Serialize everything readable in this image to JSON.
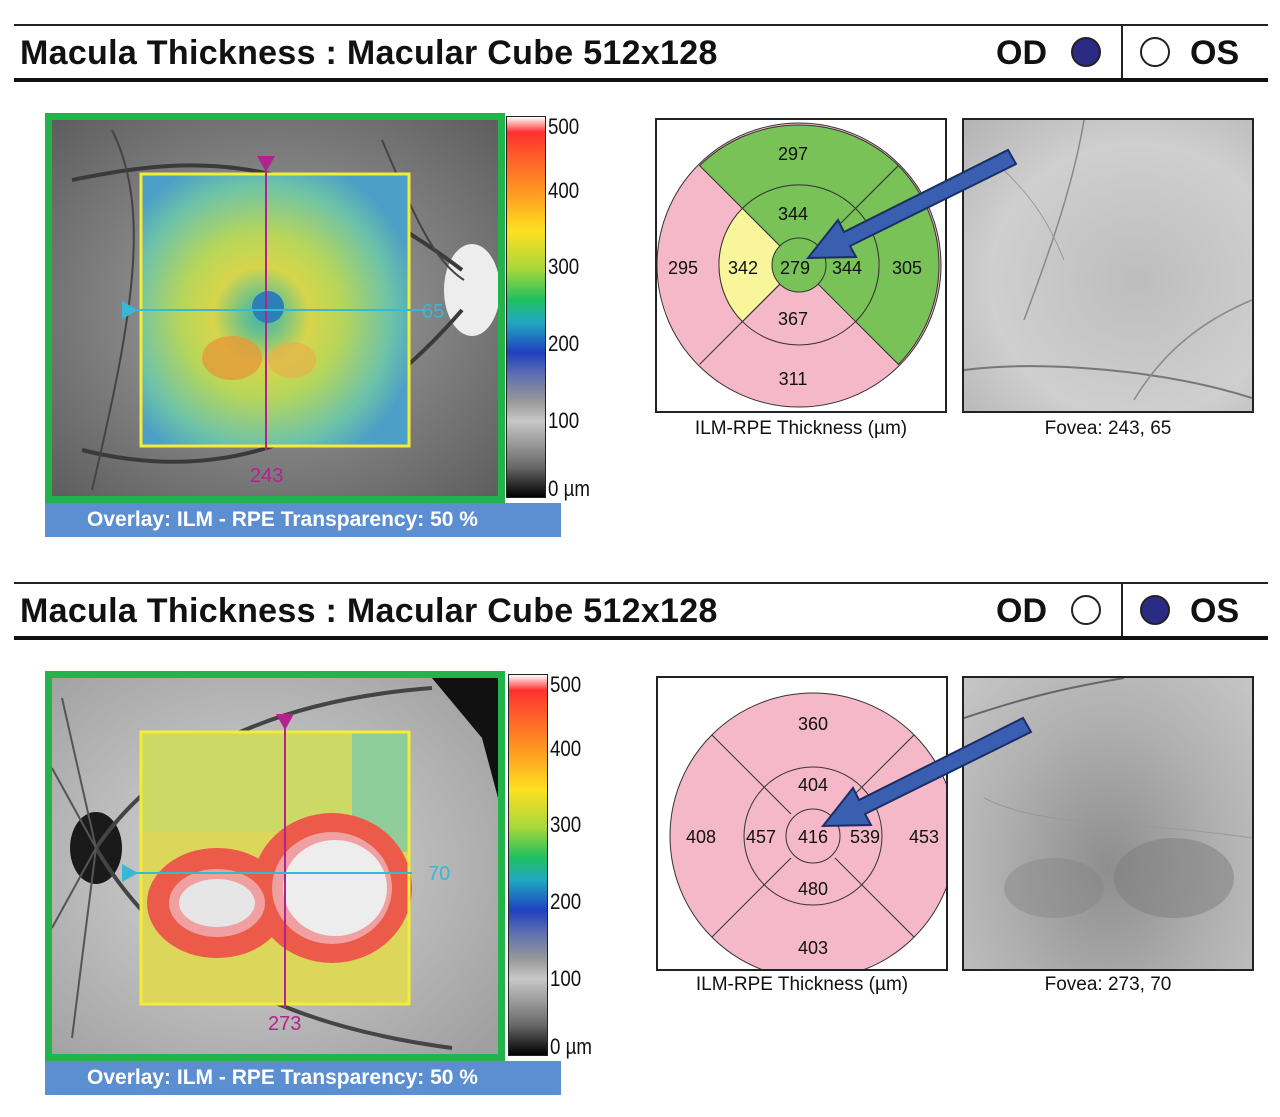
{
  "panels": [
    {
      "eye_selected": "OD",
      "title": "Macula Thickness : Macular Cube 512x128",
      "od_label": "OD",
      "os_label": "OS",
      "overlay_text": "Overlay: ILM - RPE  Transparency: 50 %",
      "horizontal_marker": "65",
      "vertical_marker": "243",
      "scale_labels": [
        "500",
        "400",
        "300",
        "200",
        "100",
        "0 µm"
      ],
      "sectors": {
        "center": "279",
        "inner_superior": "344",
        "inner_inferior": "367",
        "inner_temporal": "342",
        "inner_nasal": "344",
        "outer_superior": "297",
        "outer_inferior": "311",
        "outer_temporal": "295",
        "outer_nasal": "305"
      },
      "map_caption": "ILM-RPE Thickness (µm)",
      "fovea_caption": "Fovea: 243, 65"
    },
    {
      "eye_selected": "OS",
      "title": "Macula Thickness : Macular Cube 512x128",
      "od_label": "OD",
      "os_label": "OS",
      "overlay_text": "Overlay: ILM - RPE  Transparency: 50 %",
      "horizontal_marker": "70",
      "vertical_marker": "273",
      "scale_labels": [
        "500",
        "400",
        "300",
        "200",
        "100",
        "0 µm"
      ],
      "sectors": {
        "center": "416",
        "inner_superior": "404",
        "inner_inferior": "480",
        "inner_temporal": "457",
        "inner_nasal": "539",
        "outer_superior": "360",
        "outer_inferior": "403",
        "outer_temporal": "408",
        "outer_nasal": "453"
      },
      "map_caption": "ILM-RPE Thickness (µm)",
      "fovea_caption": "Fovea: 273, 70"
    }
  ],
  "colors": {
    "normal_green": "#79c257",
    "thick_pink": "#f5b8c8",
    "thin_yellow": "#f8f59b",
    "frame_green": "#22b34a",
    "overlay_blue": "#5b8fd1",
    "arrow_blue": "#3a5fb0",
    "eye_dot": "#2b2a84"
  }
}
